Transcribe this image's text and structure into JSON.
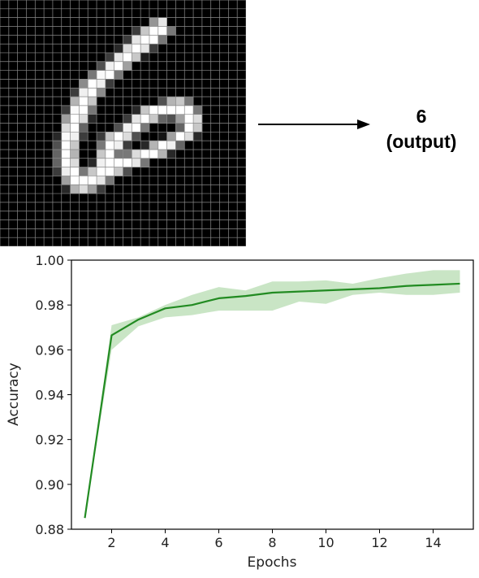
{
  "input_image": {
    "name": "handwritten digit 6",
    "grid_size": 28,
    "pixels": [
      [
        0,
        0,
        0,
        0,
        0,
        0,
        0,
        0,
        0,
        0,
        0,
        0,
        0,
        0,
        0,
        0,
        0,
        0,
        0,
        0,
        0,
        0,
        0,
        0,
        0,
        0,
        0,
        0
      ],
      [
        0,
        0,
        0,
        0,
        0,
        0,
        0,
        0,
        0,
        0,
        0,
        0,
        0,
        0,
        0,
        0,
        0,
        0,
        0,
        0,
        0,
        0,
        0,
        0,
        0,
        0,
        0,
        0
      ],
      [
        0,
        0,
        0,
        0,
        0,
        0,
        0,
        0,
        0,
        0,
        0,
        0,
        0,
        0,
        0,
        0,
        0,
        150,
        230,
        0,
        0,
        0,
        0,
        0,
        0,
        0,
        0,
        0
      ],
      [
        0,
        0,
        0,
        0,
        0,
        0,
        0,
        0,
        0,
        0,
        0,
        0,
        0,
        0,
        0,
        60,
        200,
        255,
        255,
        120,
        0,
        0,
        0,
        0,
        0,
        0,
        0,
        0
      ],
      [
        0,
        0,
        0,
        0,
        0,
        0,
        0,
        0,
        0,
        0,
        0,
        0,
        0,
        0,
        60,
        230,
        255,
        255,
        120,
        0,
        0,
        0,
        0,
        0,
        0,
        0,
        0,
        0
      ],
      [
        0,
        0,
        0,
        0,
        0,
        0,
        0,
        0,
        0,
        0,
        0,
        0,
        0,
        40,
        220,
        255,
        230,
        60,
        0,
        0,
        0,
        0,
        0,
        0,
        0,
        0,
        0,
        0
      ],
      [
        0,
        0,
        0,
        0,
        0,
        0,
        0,
        0,
        0,
        0,
        0,
        0,
        60,
        230,
        255,
        200,
        30,
        0,
        0,
        0,
        0,
        0,
        0,
        0,
        0,
        0,
        0,
        0
      ],
      [
        0,
        0,
        0,
        0,
        0,
        0,
        0,
        0,
        0,
        0,
        0,
        80,
        240,
        255,
        160,
        0,
        0,
        0,
        0,
        0,
        0,
        0,
        0,
        0,
        0,
        0,
        0,
        0
      ],
      [
        0,
        0,
        0,
        0,
        0,
        0,
        0,
        0,
        0,
        0,
        120,
        250,
        255,
        120,
        0,
        0,
        0,
        0,
        0,
        0,
        0,
        0,
        0,
        0,
        0,
        0,
        0,
        0
      ],
      [
        0,
        0,
        0,
        0,
        0,
        0,
        0,
        0,
        0,
        140,
        255,
        240,
        60,
        0,
        0,
        0,
        0,
        0,
        0,
        0,
        0,
        0,
        0,
        0,
        0,
        0,
        0,
        0
      ],
      [
        0,
        0,
        0,
        0,
        0,
        0,
        0,
        0,
        60,
        240,
        255,
        140,
        0,
        0,
        0,
        0,
        0,
        0,
        0,
        0,
        0,
        0,
        0,
        0,
        0,
        0,
        0,
        0
      ],
      [
        0,
        0,
        0,
        0,
        0,
        0,
        0,
        0,
        180,
        255,
        200,
        0,
        0,
        0,
        0,
        0,
        0,
        0,
        80,
        180,
        200,
        120,
        0,
        0,
        0,
        0,
        0,
        0
      ],
      [
        0,
        0,
        0,
        0,
        0,
        0,
        0,
        60,
        250,
        255,
        120,
        0,
        0,
        0,
        0,
        40,
        200,
        255,
        255,
        255,
        255,
        255,
        120,
        0,
        0,
        0,
        0,
        0
      ],
      [
        0,
        0,
        0,
        0,
        0,
        0,
        0,
        160,
        255,
        220,
        40,
        0,
        0,
        0,
        60,
        230,
        255,
        200,
        100,
        80,
        160,
        255,
        220,
        0,
        0,
        0,
        0,
        0
      ],
      [
        0,
        0,
        0,
        0,
        0,
        0,
        0,
        220,
        255,
        100,
        0,
        0,
        0,
        80,
        240,
        255,
        120,
        0,
        0,
        0,
        100,
        255,
        200,
        0,
        0,
        0,
        0,
        0
      ],
      [
        0,
        0,
        0,
        0,
        0,
        0,
        40,
        250,
        240,
        60,
        0,
        60,
        200,
        255,
        220,
        80,
        0,
        0,
        20,
        160,
        255,
        220,
        40,
        0,
        0,
        0,
        0,
        0
      ],
      [
        0,
        0,
        0,
        0,
        0,
        0,
        80,
        255,
        200,
        0,
        0,
        120,
        255,
        240,
        60,
        0,
        40,
        180,
        255,
        240,
        100,
        0,
        0,
        0,
        0,
        0,
        0,
        0
      ],
      [
        0,
        0,
        0,
        0,
        0,
        0,
        100,
        255,
        180,
        0,
        0,
        200,
        255,
        120,
        120,
        220,
        255,
        255,
        180,
        40,
        0,
        0,
        0,
        0,
        0,
        0,
        0,
        0
      ],
      [
        0,
        0,
        0,
        0,
        0,
        0,
        100,
        255,
        220,
        0,
        40,
        240,
        255,
        255,
        255,
        230,
        120,
        0,
        0,
        0,
        0,
        0,
        0,
        0,
        0,
        0,
        0,
        0
      ],
      [
        0,
        0,
        0,
        0,
        0,
        0,
        60,
        240,
        255,
        120,
        200,
        255,
        255,
        200,
        80,
        0,
        0,
        0,
        0,
        0,
        0,
        0,
        0,
        0,
        0,
        0,
        0,
        0
      ],
      [
        0,
        0,
        0,
        0,
        0,
        0,
        0,
        160,
        255,
        255,
        255,
        230,
        120,
        0,
        0,
        0,
        0,
        0,
        0,
        0,
        0,
        0,
        0,
        0,
        0,
        0,
        0,
        0
      ],
      [
        0,
        0,
        0,
        0,
        0,
        0,
        0,
        40,
        180,
        220,
        160,
        60,
        0,
        0,
        0,
        0,
        0,
        0,
        0,
        0,
        0,
        0,
        0,
        0,
        0,
        0,
        0,
        0
      ],
      [
        0,
        0,
        0,
        0,
        0,
        0,
        0,
        0,
        0,
        0,
        0,
        0,
        0,
        0,
        0,
        0,
        0,
        0,
        0,
        0,
        0,
        0,
        0,
        0,
        0,
        0,
        0,
        0
      ],
      [
        0,
        0,
        0,
        0,
        0,
        0,
        0,
        0,
        0,
        0,
        0,
        0,
        0,
        0,
        0,
        0,
        0,
        0,
        0,
        0,
        0,
        0,
        0,
        0,
        0,
        0,
        0,
        0
      ],
      [
        0,
        0,
        0,
        0,
        0,
        0,
        0,
        0,
        0,
        0,
        0,
        0,
        0,
        0,
        0,
        0,
        0,
        0,
        0,
        0,
        0,
        0,
        0,
        0,
        0,
        0,
        0,
        0
      ],
      [
        0,
        0,
        0,
        0,
        0,
        0,
        0,
        0,
        0,
        0,
        0,
        0,
        0,
        0,
        0,
        0,
        0,
        0,
        0,
        0,
        0,
        0,
        0,
        0,
        0,
        0,
        0,
        0
      ],
      [
        0,
        0,
        0,
        0,
        0,
        0,
        0,
        0,
        0,
        0,
        0,
        0,
        0,
        0,
        0,
        0,
        0,
        0,
        0,
        0,
        0,
        0,
        0,
        0,
        0,
        0,
        0,
        0
      ],
      [
        0,
        0,
        0,
        0,
        0,
        0,
        0,
        0,
        0,
        0,
        0,
        0,
        0,
        0,
        0,
        0,
        0,
        0,
        0,
        0,
        0,
        0,
        0,
        0,
        0,
        0,
        0,
        0
      ]
    ]
  },
  "output": {
    "value": "6",
    "label": "(output)"
  },
  "chart_data": {
    "type": "line",
    "title": "",
    "xlabel": "Epochs",
    "ylabel": "Accuracy",
    "xlim": [
      0.5,
      15.5
    ],
    "ylim": [
      0.88,
      1.0
    ],
    "x_ticks": [
      2,
      4,
      6,
      8,
      10,
      12,
      14
    ],
    "x_tick_labels": [
      "2",
      "4",
      "6",
      "8",
      "10",
      "12",
      "14"
    ],
    "y_ticks": [
      0.88,
      0.9,
      0.92,
      0.94,
      0.96,
      0.98,
      1.0
    ],
    "y_tick_labels": [
      "0.88",
      "0.90",
      "0.92",
      "0.94",
      "0.96",
      "0.98",
      "1.00"
    ],
    "grid": false,
    "line_color": "#228B22",
    "band_color": "#b7dcb2",
    "series": [
      {
        "x": [
          1,
          2,
          3,
          4,
          5,
          6,
          7,
          8,
          9,
          10,
          11,
          12,
          13,
          14,
          15
        ],
        "y": [
          0.885,
          0.9665,
          0.9735,
          0.9785,
          0.98,
          0.983,
          0.984,
          0.9855,
          0.986,
          0.9865,
          0.987,
          0.9875,
          0.9885,
          0.989,
          0.9895
        ],
        "y_lower": [
          0.885,
          0.96,
          0.9705,
          0.9745,
          0.9755,
          0.9775,
          0.9775,
          0.9775,
          0.9815,
          0.9805,
          0.9845,
          0.9855,
          0.9845,
          0.9845,
          0.9855
        ],
        "y_upper": [
          0.885,
          0.971,
          0.9745,
          0.98,
          0.9845,
          0.988,
          0.9865,
          0.9905,
          0.9905,
          0.991,
          0.9895,
          0.992,
          0.994,
          0.9955,
          0.9955
        ]
      }
    ]
  }
}
